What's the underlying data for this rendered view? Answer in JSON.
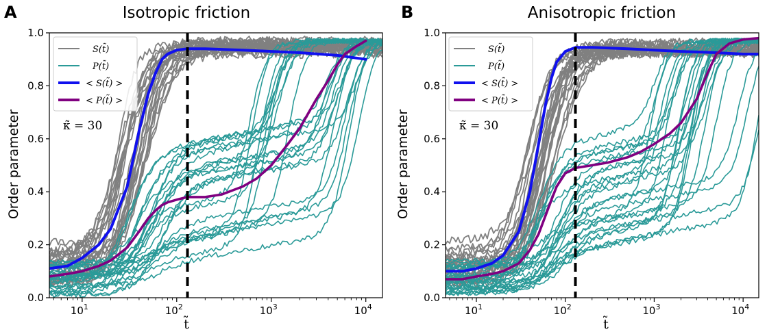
{
  "chart_data": [
    {
      "type": "line",
      "panel_letter": "A",
      "title": "Isotropic friction",
      "xlabel": "t̃",
      "ylabel": "Order parameter",
      "x_scale": "log",
      "xlim": [
        4.5,
        15000
      ],
      "ylim": [
        0,
        1
      ],
      "x_ticks": [
        {
          "value": 10,
          "label": "10",
          "exp": "1"
        },
        {
          "value": 100,
          "label": "10",
          "exp": "2"
        },
        {
          "value": 1000,
          "label": "10",
          "exp": "3"
        },
        {
          "value": 10000,
          "label": "10",
          "exp": "4"
        }
      ],
      "y_ticks": [
        {
          "value": 0.0,
          "label": "0.0"
        },
        {
          "value": 0.2,
          "label": "0.2"
        },
        {
          "value": 0.4,
          "label": "0.4"
        },
        {
          "value": 0.6,
          "label": "0.6"
        },
        {
          "value": 0.8,
          "label": "0.8"
        },
        {
          "value": 1.0,
          "label": "1.0"
        }
      ],
      "vline_x": 130,
      "annotation": "κ̃ = 30",
      "legend_position": "top-left",
      "legend": [
        {
          "label": "S(t̃)",
          "color": "#808080"
        },
        {
          "label": "P(t̃)",
          "color": "#2a9a98"
        },
        {
          "label": "< S(t̃) >",
          "color": "#1010ee"
        },
        {
          "label": "< P(t̃) >",
          "color": "#800080"
        }
      ],
      "series": [
        {
          "name": "< S(t̃) >",
          "color": "#1010ee",
          "x": [
            4.5,
            7,
            10,
            15,
            20,
            30,
            40,
            50,
            60,
            70,
            80,
            100,
            130,
            200,
            500,
            1000,
            2000,
            5000,
            10000
          ],
          "y": [
            0.11,
            0.12,
            0.15,
            0.2,
            0.26,
            0.42,
            0.63,
            0.77,
            0.85,
            0.9,
            0.92,
            0.935,
            0.94,
            0.94,
            0.935,
            0.93,
            0.925,
            0.915,
            0.9
          ]
        },
        {
          "name": "< P(t̃) >",
          "color": "#800080",
          "x": [
            4.5,
            7,
            10,
            15,
            20,
            30,
            40,
            50,
            60,
            70,
            80,
            100,
            130,
            200,
            300,
            500,
            700,
            1000,
            1500,
            2000,
            3000,
            4000,
            5000,
            6000,
            8000,
            10000
          ],
          "y": [
            0.08,
            0.09,
            0.1,
            0.12,
            0.14,
            0.19,
            0.25,
            0.3,
            0.33,
            0.35,
            0.36,
            0.37,
            0.38,
            0.38,
            0.39,
            0.42,
            0.45,
            0.5,
            0.58,
            0.64,
            0.75,
            0.82,
            0.88,
            0.92,
            0.95,
            0.97
          ]
        }
      ]
    },
    {
      "type": "line",
      "panel_letter": "B",
      "title": "Anisotropic friction",
      "xlabel": "t̃",
      "ylabel": "Order parameter",
      "x_scale": "log",
      "xlim": [
        4.5,
        15000
      ],
      "ylim": [
        0,
        1
      ],
      "x_ticks": [
        {
          "value": 10,
          "label": "10",
          "exp": "1"
        },
        {
          "value": 100,
          "label": "10",
          "exp": "2"
        },
        {
          "value": 1000,
          "label": "10",
          "exp": "3"
        },
        {
          "value": 10000,
          "label": "10",
          "exp": "4"
        }
      ],
      "y_ticks": [
        {
          "value": 0.0,
          "label": "0.0"
        },
        {
          "value": 0.2,
          "label": "0.2"
        },
        {
          "value": 0.4,
          "label": "0.4"
        },
        {
          "value": 0.6,
          "label": "0.6"
        },
        {
          "value": 0.8,
          "label": "0.8"
        },
        {
          "value": 1.0,
          "label": "1.0"
        }
      ],
      "vline_x": 130,
      "annotation": "κ̃ = 30",
      "legend_position": "top-left",
      "legend": [
        {
          "label": "S(t̃)",
          "color": "#808080"
        },
        {
          "label": "P(t̃)",
          "color": "#2a9a98"
        },
        {
          "label": "< S(t̃) >",
          "color": "#1010ee"
        },
        {
          "label": "< P(t̃) >",
          "color": "#800080"
        }
      ],
      "series": [
        {
          "name": "< S(t̃) >",
          "color": "#1010ee",
          "x": [
            4.5,
            7,
            10,
            15,
            20,
            30,
            40,
            50,
            60,
            70,
            80,
            100,
            130,
            200,
            500,
            1000,
            2000,
            5000,
            10000,
            15000
          ],
          "y": [
            0.1,
            0.1,
            0.11,
            0.13,
            0.16,
            0.25,
            0.4,
            0.58,
            0.73,
            0.83,
            0.89,
            0.93,
            0.945,
            0.945,
            0.94,
            0.935,
            0.93,
            0.925,
            0.92,
            0.92
          ]
        },
        {
          "name": "< P(t̃) >",
          "color": "#800080",
          "x": [
            4.5,
            7,
            10,
            15,
            20,
            30,
            40,
            50,
            60,
            70,
            80,
            100,
            130,
            200,
            300,
            500,
            700,
            1000,
            1500,
            2000,
            3000,
            4000,
            5000,
            7000,
            10000,
            15000
          ],
          "y": [
            0.07,
            0.07,
            0.08,
            0.09,
            0.1,
            0.13,
            0.18,
            0.24,
            0.31,
            0.37,
            0.42,
            0.47,
            0.49,
            0.5,
            0.51,
            0.53,
            0.55,
            0.58,
            0.62,
            0.66,
            0.75,
            0.85,
            0.92,
            0.96,
            0.975,
            0.98
          ]
        }
      ]
    }
  ]
}
